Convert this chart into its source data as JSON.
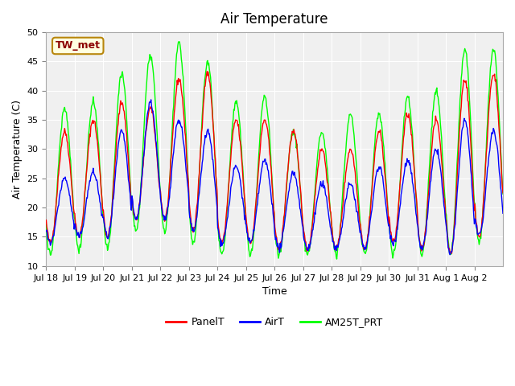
{
  "title": "Air Temperature",
  "xlabel": "Time",
  "ylabel": "Air Temperature (C)",
  "ylim": [
    10,
    50
  ],
  "annotation": "TW_met",
  "legend_labels": [
    "PanelT",
    "AirT",
    "AM25T_PRT"
  ],
  "legend_colors": [
    "red",
    "blue",
    "lime"
  ],
  "panel_color": "#f0f0f0",
  "tick_labels": [
    "Jul 18",
    "Jul 19",
    "Jul 20",
    "Jul 21",
    "Jul 22",
    "Jul 23",
    "Jul 24",
    "Jul 25",
    "Jul 26",
    "Jul 27",
    "Jul 28",
    "Jul 29",
    "Jul 30",
    "Jul 31",
    "Aug 1",
    "Aug 2"
  ],
  "num_days": 16,
  "samples_per_day": 48,
  "panel_peaks": [
    33,
    14,
    35,
    15,
    38,
    15,
    37,
    18,
    42,
    18,
    43,
    16,
    35,
    14,
    35,
    14,
    33,
    13,
    30,
    13,
    30,
    13,
    33,
    13,
    36,
    14,
    35,
    13,
    42,
    12,
    43,
    15
  ],
  "air_peaks": [
    25,
    14,
    26,
    15,
    33,
    15,
    38,
    18,
    35,
    18,
    33,
    16,
    27,
    14,
    28,
    14,
    26,
    13,
    24,
    13,
    24,
    13,
    27,
    13,
    28,
    14,
    30,
    13,
    35,
    12,
    33,
    15
  ],
  "am25t_peaks": [
    37,
    12,
    38,
    13,
    43,
    13,
    46,
    16,
    48,
    16,
    45,
    14,
    38,
    12,
    39,
    12,
    33,
    12,
    33,
    12,
    36,
    12,
    36,
    12,
    39,
    12,
    40,
    12,
    47,
    12,
    47,
    14
  ]
}
